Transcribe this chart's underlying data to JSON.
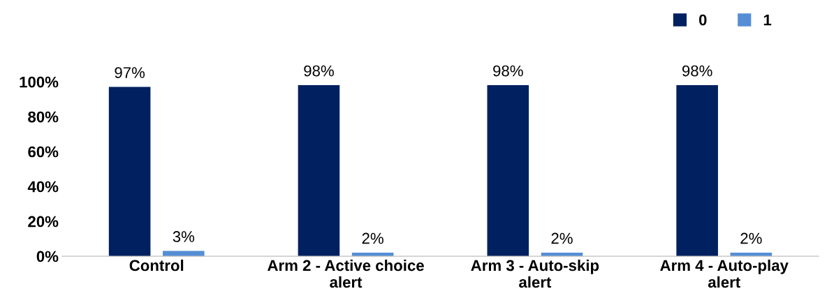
{
  "chart_data": {
    "type": "bar",
    "categories": [
      "Control",
      "Arm 2 - Active choice\nalert",
      "Arm 3 - Auto-skip\nalert",
      "Arm 4 - Auto-play\nalert"
    ],
    "series": [
      {
        "name": "0",
        "color": "#002060",
        "values": [
          97,
          98,
          98,
          98
        ],
        "value_labels": [
          "97%",
          "98%",
          "98%",
          "98%"
        ]
      },
      {
        "name": "1",
        "color": "#558ed5",
        "values": [
          3,
          2,
          2,
          2
        ],
        "value_labels": [
          "3%",
          "2%",
          "2%",
          "2%"
        ]
      }
    ],
    "ylim": [
      0,
      100
    ],
    "yticks": [
      {
        "value": 0,
        "label": "0%"
      },
      {
        "value": 20,
        "label": "20%"
      },
      {
        "value": 40,
        "label": "40%"
      },
      {
        "value": 60,
        "label": "60%"
      },
      {
        "value": 80,
        "label": "80%"
      },
      {
        "value": 100,
        "label": "100%"
      }
    ],
    "grid": false,
    "legend": "top right"
  }
}
